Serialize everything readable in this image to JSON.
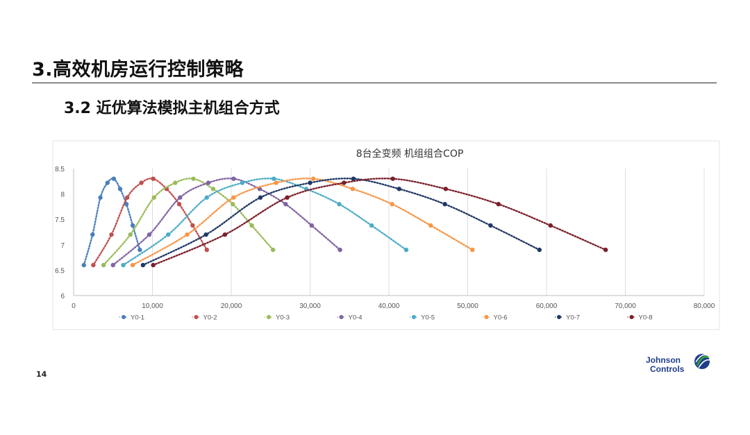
{
  "slide": {
    "title": "3.高效机房运行控制策略",
    "subtitle": "3.2 近优算法模拟主机组合方式",
    "page_number": "14"
  },
  "logo": {
    "line1": "Johnson",
    "line2": "Controls",
    "color": "#1f3e8a",
    "accent": "#3aa63f"
  },
  "chart_data": {
    "type": "scatter",
    "title": "8台全变频 机组组合COP",
    "xlim": [
      0,
      80000
    ],
    "ylim": [
      6,
      8.5
    ],
    "x_ticks": [
      0,
      10000,
      20000,
      30000,
      40000,
      50000,
      60000,
      70000,
      80000
    ],
    "x_tick_labels": [
      "0",
      "10,000",
      "20,000",
      "30,000",
      "40,000",
      "50,000",
      "60,000",
      "70,000",
      "80,000"
    ],
    "y_ticks": [
      6,
      6.5,
      7,
      7.5,
      8,
      8.5
    ],
    "y_tick_labels": [
      "6",
      "6.5",
      "7",
      "7.5",
      "8",
      "8.5"
    ],
    "grid": "vertical",
    "legend_position": "bottom",
    "series": [
      {
        "name": "Y0-1",
        "color": "#4a7ebb",
        "x": [
          1300,
          2400,
          3400,
          4300,
          5100,
          5900,
          6700,
          7500,
          8400
        ],
        "y": [
          6.6,
          7.2,
          7.93,
          8.22,
          8.3,
          8.1,
          7.8,
          7.38,
          6.9
        ]
      },
      {
        "name": "Y0-2",
        "color": "#c0504d",
        "x": [
          2500,
          4800,
          6800,
          8600,
          10100,
          11800,
          13400,
          15100,
          16900
        ],
        "y": [
          6.6,
          7.2,
          7.93,
          8.22,
          8.3,
          8.1,
          7.8,
          7.38,
          6.9
        ]
      },
      {
        "name": "Y0-3",
        "color": "#9bbb59",
        "x": [
          3800,
          7200,
          10200,
          12900,
          15200,
          17700,
          20200,
          22600,
          25300
        ],
        "y": [
          6.6,
          7.2,
          7.93,
          8.22,
          8.3,
          8.1,
          7.8,
          7.38,
          6.9
        ]
      },
      {
        "name": "Y0-4",
        "color": "#8064a2",
        "x": [
          5000,
          9600,
          13500,
          17100,
          20300,
          23600,
          26900,
          30200,
          33800
        ],
        "y": [
          6.6,
          7.2,
          7.93,
          8.22,
          8.3,
          8.1,
          7.8,
          7.38,
          6.9
        ]
      },
      {
        "name": "Y0-5",
        "color": "#4bacc6",
        "x": [
          6300,
          12000,
          16900,
          21400,
          25400,
          29500,
          33700,
          37800,
          42200
        ],
        "y": [
          6.6,
          7.2,
          7.93,
          8.22,
          8.3,
          8.1,
          7.8,
          7.38,
          6.9
        ]
      },
      {
        "name": "Y0-6",
        "color": "#f79646",
        "x": [
          7500,
          14400,
          20300,
          25700,
          30400,
          35400,
          40400,
          45300,
          50600
        ],
        "y": [
          6.6,
          7.2,
          7.93,
          8.22,
          8.3,
          8.1,
          7.8,
          7.38,
          6.9
        ]
      },
      {
        "name": "Y0-7",
        "color": "#1f3864",
        "x": [
          8800,
          16800,
          23700,
          30000,
          35500,
          41300,
          47100,
          52900,
          59100
        ],
        "y": [
          6.6,
          7.2,
          7.93,
          8.22,
          8.3,
          8.1,
          7.8,
          7.38,
          6.9
        ]
      },
      {
        "name": "Y0-8",
        "color": "#7b1f2b",
        "x": [
          10100,
          19200,
          27100,
          34300,
          40500,
          47200,
          53900,
          60500,
          67500
        ],
        "y": [
          6.6,
          7.2,
          7.93,
          8.22,
          8.3,
          8.1,
          7.8,
          7.38,
          6.9
        ]
      }
    ]
  }
}
